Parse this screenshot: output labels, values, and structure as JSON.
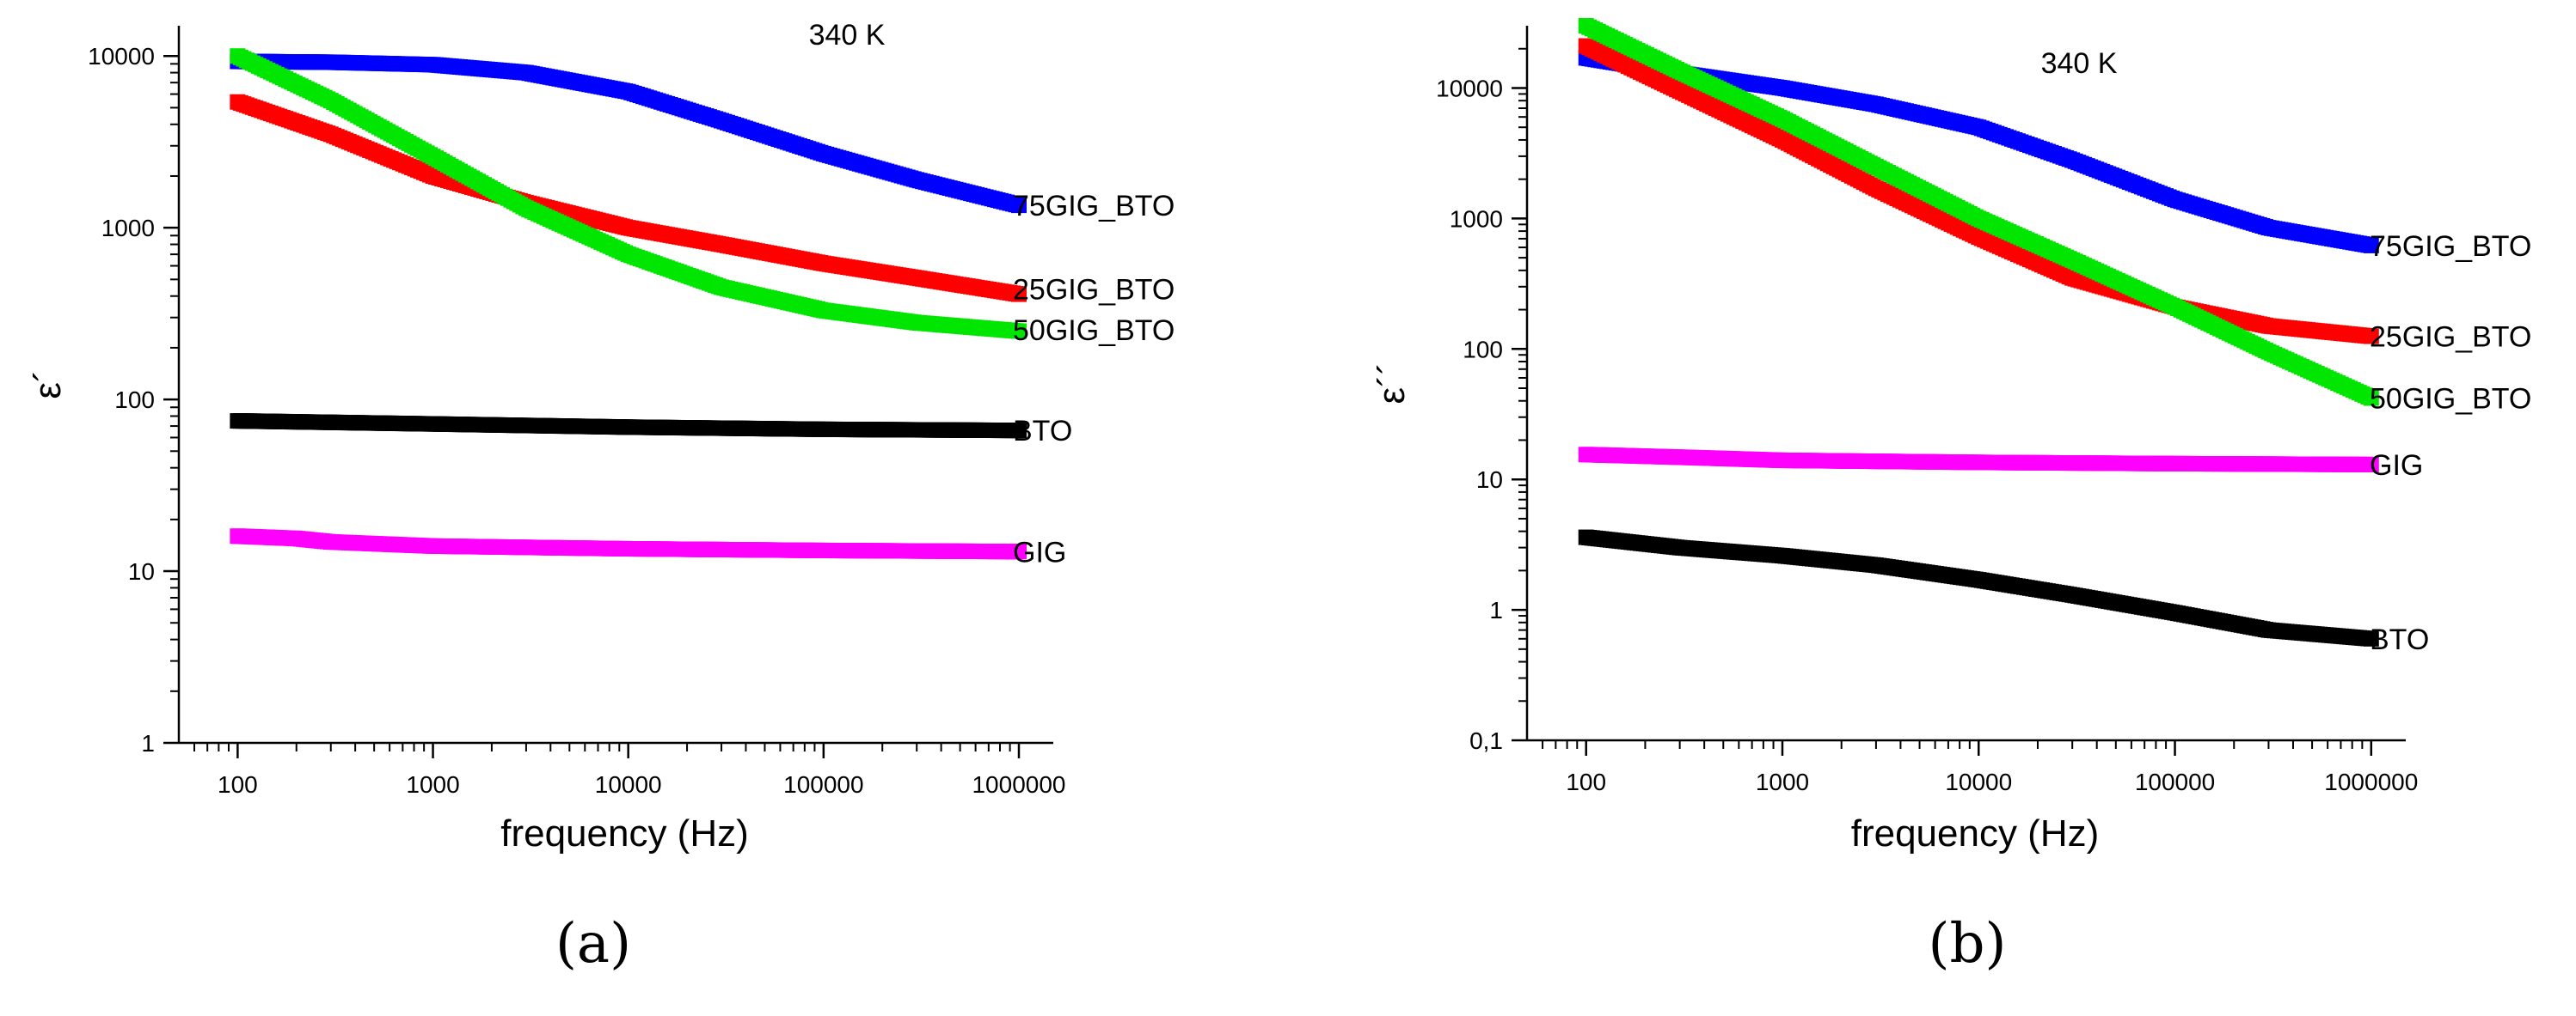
{
  "chart_data": [
    {
      "id": "a",
      "type": "line",
      "title": "340 K",
      "xlabel": "frequency (Hz)",
      "ylabel": "ε´",
      "xscale": "log",
      "yscale": "log",
      "xlim": [
        50,
        1500000
      ],
      "ylim": [
        1,
        15000
      ],
      "xticks": [
        100,
        1000,
        10000,
        100000,
        1000000
      ],
      "xtick_labels": [
        "100",
        "1000",
        "10000",
        "100000",
        "1000000"
      ],
      "yticks": [
        1,
        10,
        100,
        1000,
        10000
      ],
      "ytick_labels": [
        "1",
        "10",
        "100",
        "1000",
        "10000"
      ],
      "panel_label": "(a)",
      "series": [
        {
          "name": "75GIG_BTO",
          "color": "#0000ff",
          "x": [
            100,
            300,
            1000,
            3000,
            10000,
            30000,
            100000,
            300000,
            1000000
          ],
          "y": [
            9300,
            9200,
            8900,
            8000,
            6200,
            4200,
            2700,
            1900,
            1350
          ]
        },
        {
          "name": "25GIG_BTO",
          "color": "#ff0000",
          "x": [
            100,
            300,
            1000,
            3000,
            10000,
            30000,
            100000,
            300000,
            1000000
          ],
          "y": [
            5400,
            3500,
            2000,
            1400,
            1000,
            800,
            620,
            510,
            410
          ]
        },
        {
          "name": "50GIG_BTO",
          "color": "#00e600",
          "x": [
            100,
            300,
            1000,
            3000,
            10000,
            30000,
            100000,
            300000,
            1000000
          ],
          "y": [
            10000,
            5500,
            2600,
            1300,
            700,
            450,
            330,
            280,
            250
          ]
        },
        {
          "name": "BTO",
          "color": "#000000",
          "x": [
            100,
            1000,
            10000,
            100000,
            1000000
          ],
          "y": [
            75,
            72,
            69,
            67,
            66
          ]
        },
        {
          "name": "GIG",
          "color": "#ff00ff",
          "x": [
            100,
            200,
            300,
            1000,
            10000,
            100000,
            1000000
          ],
          "y": [
            16,
            15.5,
            14.8,
            14,
            13.5,
            13.2,
            13
          ]
        }
      ],
      "labels": [
        {
          "series": "75GIG_BTO",
          "text": "75GIG_BTO",
          "y": 1350
        },
        {
          "series": "25GIG_BTO",
          "text": "25GIG_BTO",
          "y": 440
        },
        {
          "series": "50GIG_BTO",
          "text": "50GIG_BTO",
          "y": 255
        },
        {
          "series": "BTO",
          "text": "BTO",
          "y": 66
        },
        {
          "series": "GIG",
          "text": "GIG",
          "y": 13
        }
      ]
    },
    {
      "id": "b",
      "type": "line",
      "title": "340 K",
      "xlabel": "frequency (Hz)",
      "ylabel": "ε´´",
      "xscale": "log",
      "yscale": "log",
      "xlim": [
        50,
        1500000
      ],
      "ylim": [
        0.1,
        30000
      ],
      "xticks": [
        100,
        1000,
        10000,
        100000,
        1000000
      ],
      "xtick_labels": [
        "100",
        "1000",
        "10000",
        "100000",
        "1000000"
      ],
      "yticks": [
        0.1,
        1,
        10,
        100,
        1000,
        10000
      ],
      "ytick_labels": [
        "0,1",
        "1",
        "10",
        "100",
        "1000",
        "10000"
      ],
      "panel_label": "(b)",
      "series": [
        {
          "name": "75GIG_BTO",
          "color": "#0000ff",
          "x": [
            100,
            300,
            1000,
            3000,
            10000,
            30000,
            100000,
            300000,
            1000000
          ],
          "y": [
            17000,
            13000,
            10000,
            7500,
            5000,
            2800,
            1400,
            850,
            620
          ]
        },
        {
          "name": "25GIG_BTO",
          "color": "#ff0000",
          "x": [
            100,
            300,
            1000,
            3000,
            10000,
            30000,
            100000,
            300000,
            1000000
          ],
          "y": [
            21000,
            9500,
            4000,
            1700,
            720,
            350,
            210,
            150,
            125
          ]
        },
        {
          "name": "50GIG_BTO",
          "color": "#00e600",
          "x": [
            100,
            300,
            1000,
            3000,
            10000,
            30000,
            100000,
            300000,
            1000000
          ],
          "y": [
            30000,
            13500,
            5800,
            2500,
            1000,
            480,
            210,
            95,
            42
          ]
        },
        {
          "name": "GIG",
          "color": "#ff00ff",
          "x": [
            100,
            300,
            1000,
            10000,
            100000,
            1000000
          ],
          "y": [
            15.5,
            14.8,
            14,
            13.5,
            13.2,
            13
          ]
        },
        {
          "name": "BTO",
          "color": "#000000",
          "x": [
            100,
            300,
            1000,
            3000,
            10000,
            30000,
            100000,
            300000,
            1000000
          ],
          "y": [
            3.6,
            3.0,
            2.6,
            2.2,
            1.7,
            1.3,
            0.95,
            0.7,
            0.6
          ]
        }
      ],
      "labels": [
        {
          "series": "75GIG_BTO",
          "text": "75GIG_BTO",
          "y": 620
        },
        {
          "series": "25GIG_BTO",
          "text": "25GIG_BTO",
          "y": 125
        },
        {
          "series": "50GIG_BTO",
          "text": "50GIG_BTO",
          "y": 42
        },
        {
          "series": "GIG",
          "text": "GIG",
          "y": 13
        },
        {
          "series": "BTO",
          "text": "BTO",
          "y": 0.6
        }
      ]
    }
  ]
}
